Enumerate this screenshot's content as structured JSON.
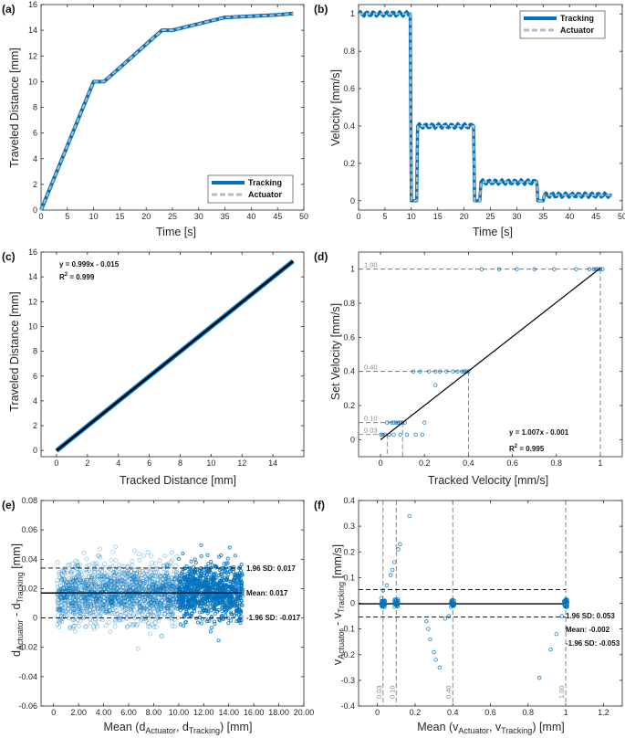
{
  "colors": {
    "tracking": "#0072BD",
    "actuator": "#BBBBBB",
    "axis": "#262626",
    "fit": "#000000",
    "dash": "#666666"
  },
  "panels": {
    "a": {
      "label": "(a)",
      "xlabel": "Time [s]",
      "ylabel": "Traveled Distance [mm]"
    },
    "b": {
      "label": "(b)",
      "xlabel": "Time [s]",
      "ylabel": "Velocity [mm/s]"
    },
    "c": {
      "label": "(c)",
      "xlabel": "Tracked Distance [mm]",
      "ylabel": "Traveled Distance [mm]"
    },
    "d": {
      "label": "(d)",
      "xlabel": "Tracked Velocity [mm/s]",
      "ylabel": "Set Velocity [mm/s]"
    },
    "e": {
      "label": "(e)",
      "xlabel_main": "Mean (d",
      "xlabel_sub1": "Actuator",
      "xlabel_mid": ", d",
      "xlabel_sub2": "Tracking",
      "xlabel_end": ") [mm]",
      "ylabel_main1": "d",
      "ylabel_sub1": "Actuator",
      "ylabel_mid": " - d",
      "ylabel_sub2": "Tracking",
      "ylabel_end": " [mm]"
    },
    "f": {
      "label": "(f)",
      "xlabel_main": "Mean (v",
      "xlabel_sub1": "Actuator",
      "xlabel_mid": ", v",
      "xlabel_sub2": "Tracking",
      "xlabel_end": ") [mm]",
      "ylabel_main1": "v",
      "ylabel_sub1": "Actuator",
      "ylabel_mid": " - v",
      "ylabel_sub2": "Tracking",
      "ylabel_end": " [mm/s]"
    }
  },
  "legend": {
    "tracking": "Tracking",
    "actuator": "Actuator"
  },
  "annotations": {
    "c_eq": "y    = 0.999x - 0.015",
    "c_r2_main": "R",
    "c_r2_exp": "2",
    "c_r2_val": " = 0.999",
    "d_eq": "y    = 1.007x - 0.001",
    "d_r2_main": "R",
    "d_r2_exp": "2",
    "d_r2_val": " = 0.995",
    "e_up": "1.96 SD: 0.017",
    "e_mean": "Mean: 0.017",
    "e_lo": "-1.96 SD: -0.017",
    "f_up": "1.96 SD: 0.053",
    "f_mean": "Mean: -0.002",
    "f_lo": "-1.96 SD: -0.053"
  },
  "chart_data": [
    {
      "panel": "a",
      "type": "line",
      "xlim": [
        0,
        50
      ],
      "ylim": [
        0,
        16
      ],
      "xticks": [
        0,
        5,
        10,
        15,
        20,
        25,
        30,
        35,
        40,
        45,
        50
      ],
      "yticks": [
        0,
        2,
        4,
        6,
        8,
        10,
        12,
        14,
        16
      ],
      "series": [
        {
          "name": "Tracking",
          "x": [
            0,
            10,
            12,
            23,
            25,
            35,
            45,
            48
          ],
          "y": [
            0,
            10,
            10,
            14,
            14,
            15,
            15.2,
            15.3
          ]
        },
        {
          "name": "Actuator",
          "x": [
            0,
            10,
            12,
            23,
            25,
            35,
            45,
            48
          ],
          "y": [
            0,
            10,
            10,
            14,
            14,
            15,
            15.2,
            15.3
          ]
        }
      ]
    },
    {
      "panel": "b",
      "type": "line",
      "xlim": [
        0,
        50
      ],
      "ylim": [
        -0.05,
        1.05
      ],
      "xticks": [
        0,
        5,
        10,
        15,
        20,
        25,
        30,
        35,
        40,
        45,
        50
      ],
      "yticks": [
        0,
        0.2,
        0.4,
        0.6,
        0.8,
        1
      ],
      "series": [
        {
          "name": "Tracking",
          "x": [
            0,
            9.8,
            10,
            11,
            11.2,
            21.8,
            22,
            23,
            23.2,
            33.8,
            34,
            35,
            35.2,
            48
          ],
          "y": [
            1,
            1,
            0,
            0,
            0.4,
            0.4,
            0,
            0,
            0.1,
            0.1,
            0,
            0,
            0.03,
            0.03
          ]
        },
        {
          "name": "Actuator",
          "x": [
            0,
            9.8,
            10,
            11,
            11.2,
            21.8,
            22,
            23,
            23.2,
            33.8,
            34,
            35,
            35.2,
            48
          ],
          "y": [
            1,
            1,
            0,
            0,
            0.4,
            0.4,
            0,
            0,
            0.1,
            0.1,
            0,
            0,
            0.03,
            0.03
          ]
        }
      ]
    },
    {
      "panel": "c",
      "type": "scatter",
      "xlim": [
        -1,
        16
      ],
      "ylim": [
        -0.5,
        16
      ],
      "xticks": [
        0,
        2,
        4,
        6,
        8,
        10,
        12,
        14
      ],
      "yticks": [
        0,
        2,
        4,
        6,
        8,
        10,
        12,
        14,
        16
      ],
      "fit": {
        "slope": 0.999,
        "intercept": -0.015,
        "r2": 0.999,
        "x_range": [
          0,
          15.3
        ]
      }
    },
    {
      "panel": "d",
      "type": "scatter",
      "xlim": [
        -0.1,
        1.1
      ],
      "ylim": [
        -0.1,
        1.1
      ],
      "xticks": [
        0,
        0.2,
        0.4,
        0.6,
        0.8,
        1
      ],
      "yticks": [
        0,
        0.2,
        0.4,
        0.6,
        0.8,
        1
      ],
      "set_levels": [
        0.03,
        0.1,
        0.4,
        1.0
      ],
      "set_level_labels": [
        "0.03",
        "0.10",
        "0.40",
        "1.00"
      ],
      "fit": {
        "slope": 1.007,
        "intercept": -0.001,
        "r2": 0.995,
        "x_range": [
          0,
          1
        ]
      }
    },
    {
      "panel": "e",
      "type": "scatter",
      "xlim": [
        -1,
        20
      ],
      "ylim": [
        -0.06,
        0.08
      ],
      "xticks": [
        0,
        2,
        4,
        6,
        8,
        10,
        12,
        14,
        16,
        18,
        20
      ],
      "yticks": [
        -0.06,
        -0.04,
        -0.02,
        0,
        0.02,
        0.04,
        0.06,
        0.08
      ],
      "mean": 0.017,
      "upper": 0.034,
      "lower": 0.0,
      "upper_sd_label": 0.017,
      "lower_sd_label": -0.017
    },
    {
      "panel": "f",
      "type": "scatter",
      "xlim": [
        -0.1,
        1.3
      ],
      "ylim": [
        -0.4,
        0.4
      ],
      "xticks": [
        0,
        0.2,
        0.4,
        0.6,
        0.8,
        1,
        1.2
      ],
      "yticks": [
        -0.4,
        -0.3,
        -0.2,
        -0.1,
        0,
        0.1,
        0.2,
        0.3,
        0.4
      ],
      "mean": -0.002,
      "upper": 0.053,
      "lower": -0.053,
      "set_levels": [
        0.03,
        0.1,
        0.4,
        1.0
      ],
      "set_level_labels": [
        "0.03",
        "0.10",
        "0.40",
        "1.00"
      ],
      "outliers": [
        [
          0.02,
          0.02
        ],
        [
          0.03,
          0.05
        ],
        [
          0.05,
          0.07
        ],
        [
          0.07,
          0.11
        ],
        [
          0.08,
          0.13
        ],
        [
          0.09,
          0.16
        ],
        [
          0.11,
          0.21
        ],
        [
          0.12,
          0.23
        ],
        [
          0.17,
          0.34
        ],
        [
          0.26,
          -0.07
        ],
        [
          0.27,
          -0.1
        ],
        [
          0.28,
          -0.14
        ],
        [
          0.3,
          -0.19
        ],
        [
          0.31,
          -0.22
        ],
        [
          0.33,
          -0.25
        ],
        [
          0.36,
          -0.06
        ],
        [
          0.38,
          -0.05
        ],
        [
          0.86,
          -0.29
        ],
        [
          0.92,
          -0.18
        ],
        [
          0.95,
          -0.12
        ],
        [
          0.98,
          -0.05
        ]
      ]
    }
  ]
}
